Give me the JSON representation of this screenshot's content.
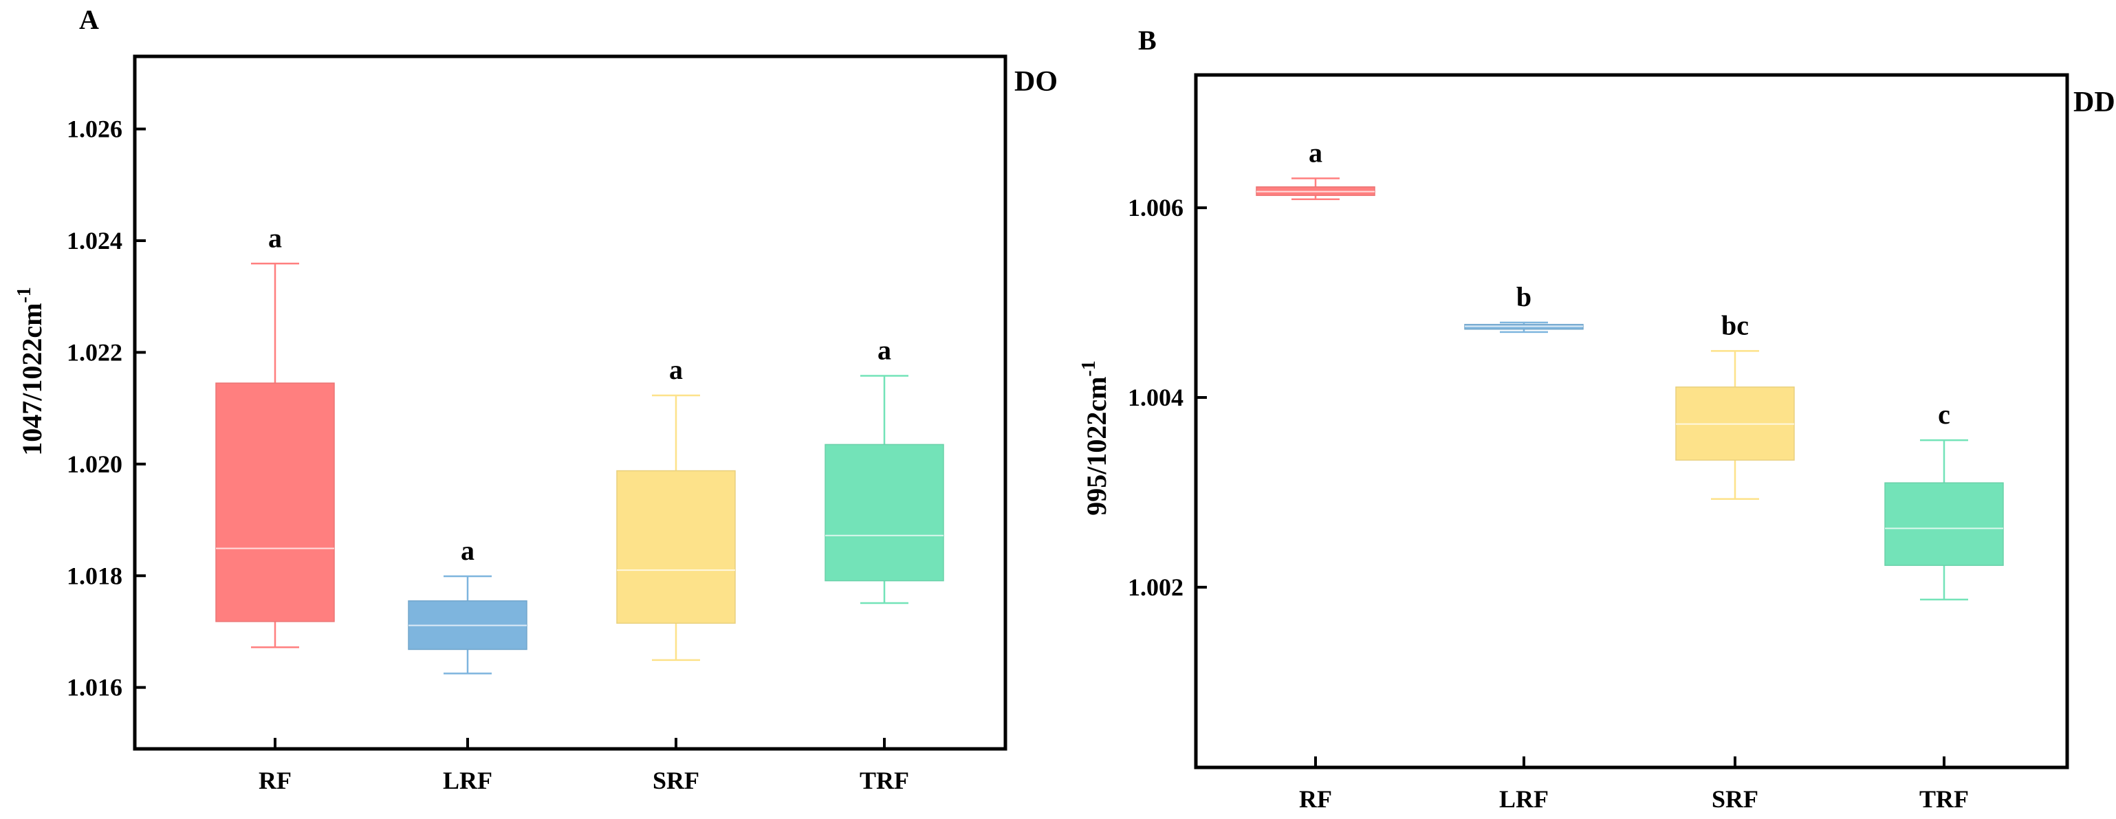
{
  "chart_data": [
    {
      "type": "box",
      "panel_label": "A",
      "corner_label": "DO",
      "ylabel_main": "1047/1022cm",
      "ylabel_sup": "-1",
      "ylim": [
        1.0149,
        1.0273
      ],
      "yticks": [
        "1.016",
        "1.018",
        "1.020",
        "1.022",
        "1.024",
        "1.026"
      ],
      "categories": [
        "RF",
        "LRF",
        "SRF",
        "TRF"
      ],
      "boxes": [
        {
          "name": "RF",
          "min": 1.01672,
          "q1": 1.01718,
          "median": 1.01849,
          "q3": 1.02145,
          "max": 1.02359,
          "sig": "a",
          "color": "#ff7f7f"
        },
        {
          "name": "LRF",
          "min": 1.01625,
          "q1": 1.01668,
          "median": 1.01711,
          "q3": 1.01755,
          "max": 1.01799,
          "sig": "a",
          "color": "#7eb5de"
        },
        {
          "name": "SRF",
          "min": 1.01649,
          "q1": 1.01715,
          "median": 1.0181,
          "q3": 1.01988,
          "max": 1.02123,
          "sig": "a",
          "color": "#fde28a"
        },
        {
          "name": "TRF",
          "min": 1.01751,
          "q1": 1.01791,
          "median": 1.01872,
          "q3": 1.02035,
          "max": 1.02158,
          "sig": "a",
          "color": "#73e3b8"
        }
      ]
    },
    {
      "type": "box",
      "panel_label": "B",
      "corner_label": "DD",
      "ylabel_main": "995/1022cm",
      "ylabel_sup": "-1",
      "ylim": [
        1.0001,
        1.0074
      ],
      "yticks": [
        "1.002",
        "1.004",
        "1.006"
      ],
      "categories": [
        "RF",
        "LRF",
        "SRF",
        "TRF"
      ],
      "boxes": [
        {
          "name": "RF",
          "min": 1.00609,
          "q1": 1.00613,
          "median": 1.00617,
          "q3": 1.00622,
          "max": 1.00631,
          "sig": "a",
          "color": "#ff7f7f"
        },
        {
          "name": "LRF",
          "min": 1.00469,
          "q1": 1.00472,
          "median": 1.00475,
          "q3": 1.00477,
          "max": 1.00479,
          "sig": "b",
          "color": "#7eb5de"
        },
        {
          "name": "SRF",
          "min": 1.00293,
          "q1": 1.00334,
          "median": 1.00372,
          "q3": 1.00411,
          "max": 1.00449,
          "sig": "bc",
          "color": "#fde28a"
        },
        {
          "name": "TRF",
          "min": 1.00187,
          "q1": 1.00223,
          "median": 1.00262,
          "q3": 1.0031,
          "max": 1.00355,
          "sig": "c",
          "color": "#73e3b8"
        }
      ]
    }
  ]
}
